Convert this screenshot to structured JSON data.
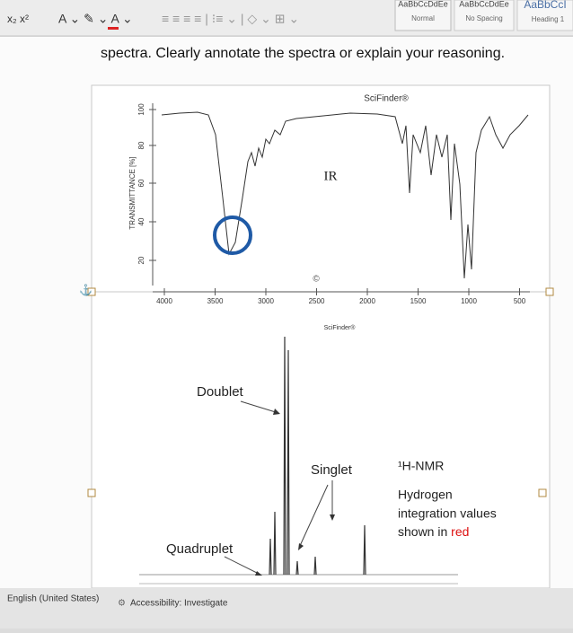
{
  "toolbar": {
    "styles": [
      {
        "preview": "AaBbCcDdEe",
        "name": "Normal"
      },
      {
        "preview": "AaBbCcDdEe",
        "name": "No Spacing"
      },
      {
        "preview": "AaBbCcI",
        "name": "Heading 1"
      }
    ]
  },
  "document": {
    "text": "spectra. Clearly annotate the spectra or explain your reasoning."
  },
  "ir": {
    "watermark": "SciFinder®",
    "label": "IR",
    "y_axis_title": "TRANSMITTANCE [%]",
    "yticks": [
      "100",
      "80",
      "60",
      "40",
      "20"
    ],
    "xticks": [
      "4000",
      "3500",
      "3000",
      "2500",
      "2000",
      "1500",
      "1000",
      "500"
    ]
  },
  "nmr": {
    "watermark": "SciFinder®",
    "annotations": [
      "Doublet",
      "Singlet",
      "Quadruplet"
    ],
    "title": "¹H-NMR",
    "note_lines": [
      "Hydrogen",
      "integration values"
    ],
    "note_last": "shown in",
    "note_red": "red"
  },
  "status_bar": {
    "language": "English (United States)",
    "accessibility": "Accessibility: Investigate"
  }
}
